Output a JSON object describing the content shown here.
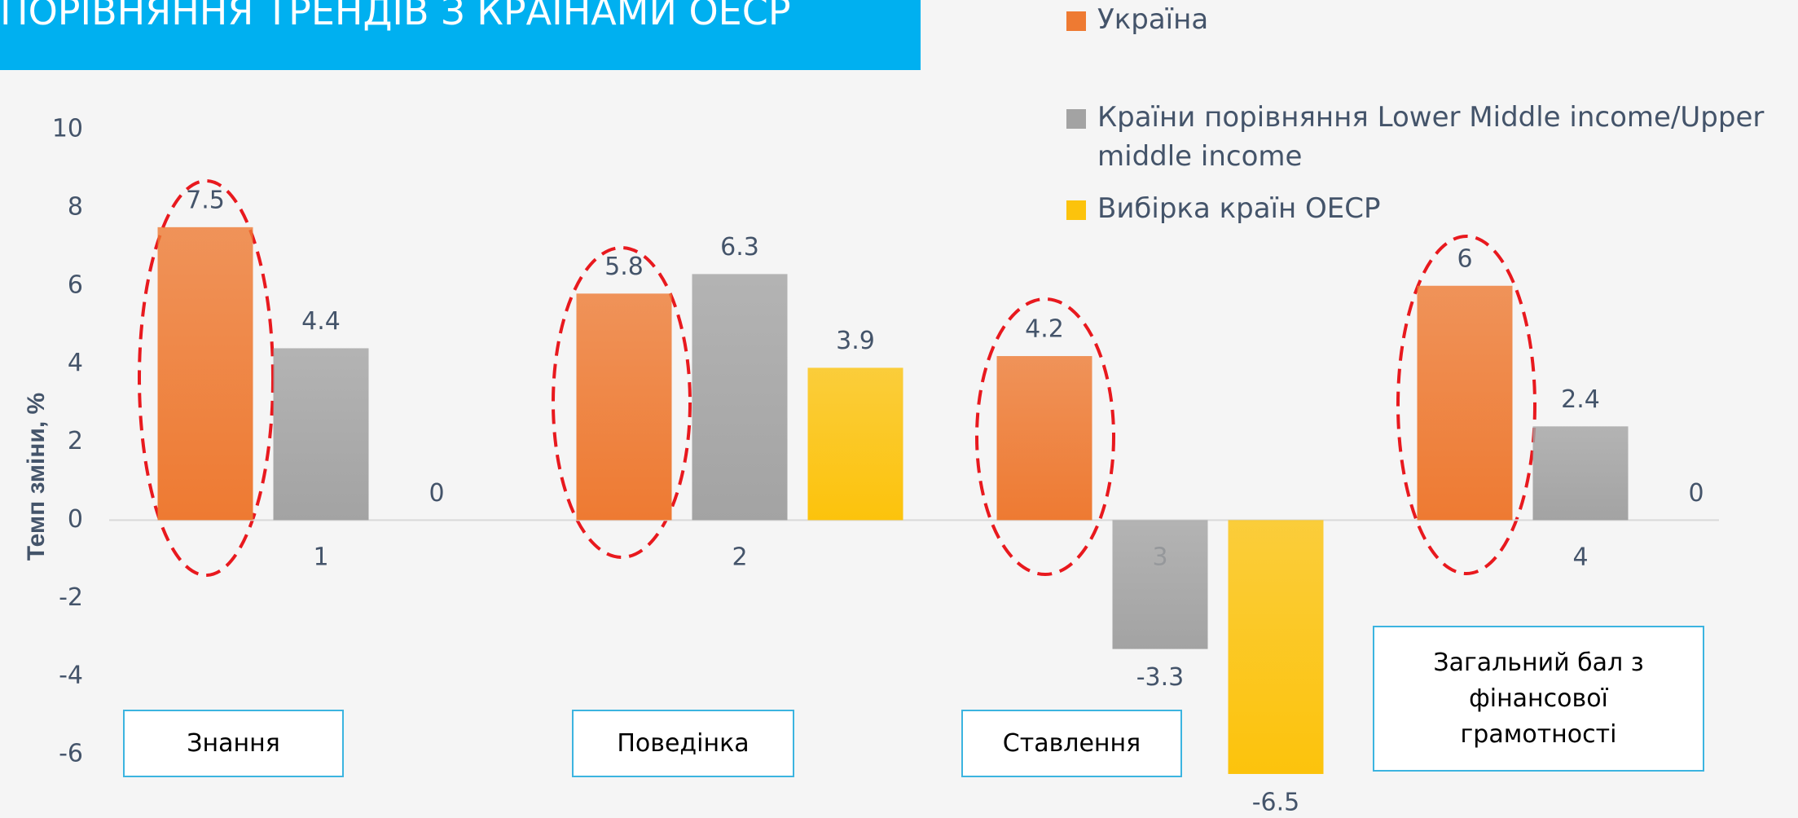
{
  "chart_data": {
    "type": "bar",
    "title": "ПОРІВНЯННЯ ТРЕНДІВ З КРАЇНАМИ ОЕСР",
    "y_label": "Темп зміни, %",
    "categories": [
      "1",
      "2",
      "3",
      "4"
    ],
    "series": [
      {
        "name": "Україна",
        "color": "#ee7a32",
        "values": [
          7.5,
          5.8,
          4.2,
          6
        ]
      },
      {
        "name": "Країни порівняння Lower Middle income/Upper middle income",
        "color": "#a3a3a3",
        "values": [
          4.4,
          6.3,
          -3.3,
          2.4
        ]
      },
      {
        "name": "Вибірка країн ОЕСР",
        "color": "#fcc30c",
        "values": [
          0,
          3.9,
          -6.5,
          0
        ]
      }
    ],
    "ylim": [
      -6,
      10
    ],
    "yticks": [
      -6,
      -4,
      -2,
      0,
      2,
      4,
      6,
      8,
      10
    ],
    "annotations": [
      "Знання",
      "Поведінка",
      "Ставлення",
      "Загальний  бал з фінансової грамотності"
    ],
    "legend": "top-right",
    "grid": false
  }
}
